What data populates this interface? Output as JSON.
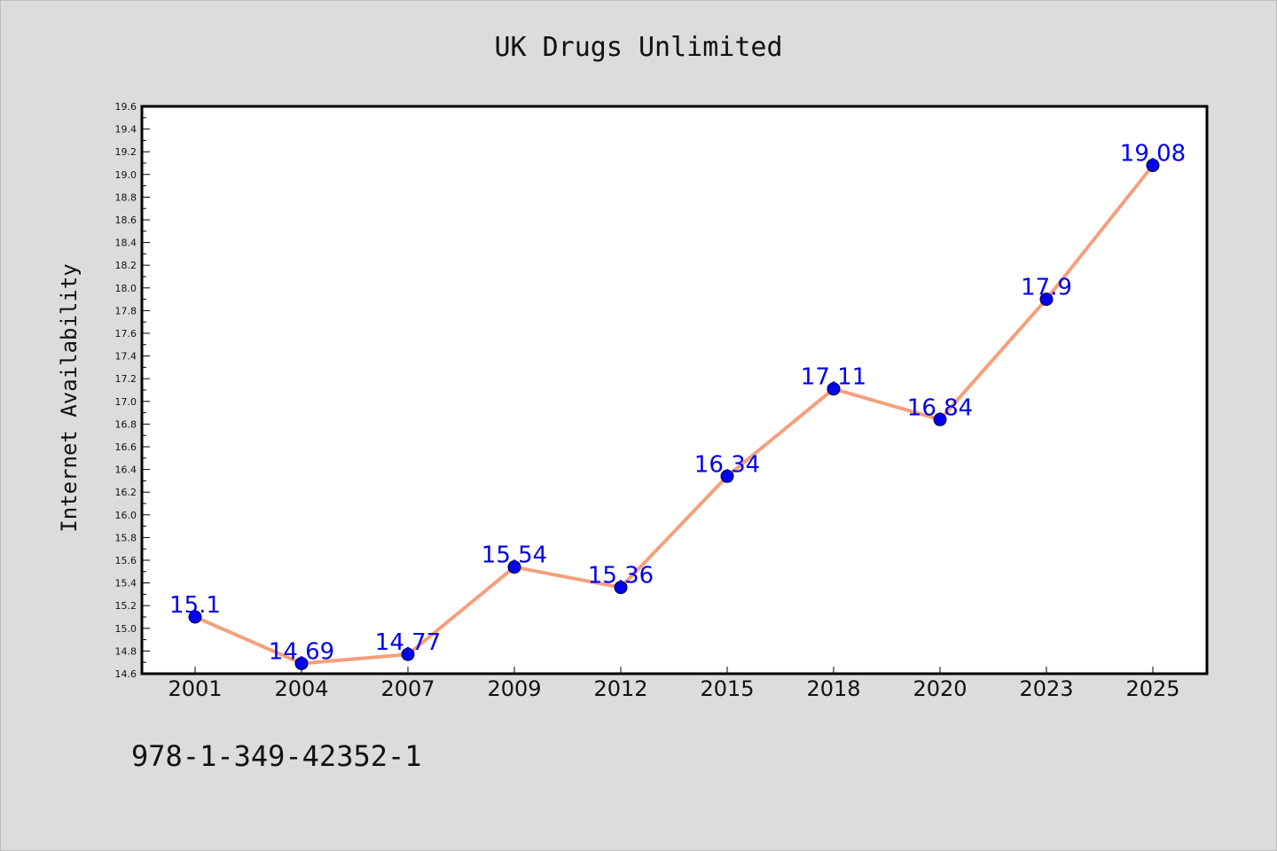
{
  "chart_data": {
    "type": "line",
    "title": "UK Drugs Unlimited",
    "xlabel": "",
    "ylabel": "Internet Availability",
    "categories": [
      "2001",
      "2004",
      "2007",
      "2009",
      "2012",
      "2015",
      "2018",
      "2020",
      "2023",
      "2025"
    ],
    "series": [
      {
        "values": [
          15.1,
          14.69,
          14.77,
          15.54,
          15.36,
          16.34,
          17.11,
          16.84,
          17.9,
          19.08
        ],
        "labels": [
          "15.1",
          "14.69",
          "14.77",
          "15.54",
          "15.36",
          "16.34",
          "17.11",
          "16.84",
          "17.9",
          "19.08"
        ]
      }
    ],
    "ylim": [
      14.6,
      19.6
    ],
    "ytick_step": 0.2,
    "yticks": [
      "14.6",
      "14.8",
      "15.0",
      "15.2",
      "15.4",
      "15.6",
      "15.8",
      "16.0",
      "16.2",
      "16.4",
      "16.6",
      "16.8",
      "17.0",
      "17.2",
      "17.4",
      "17.6",
      "17.8",
      "18.0",
      "18.2",
      "18.4",
      "18.6",
      "18.8",
      "19.0",
      "19.2",
      "19.4",
      "19.6"
    ],
    "grid": false,
    "line_color": "#f4a07c",
    "marker_color": "#0000ee",
    "label_color": "#0000ee"
  },
  "footnote": "978-1-349-42352-1",
  "colors": {
    "background": "#dcdcdc",
    "plot_background": "#ffffff"
  }
}
